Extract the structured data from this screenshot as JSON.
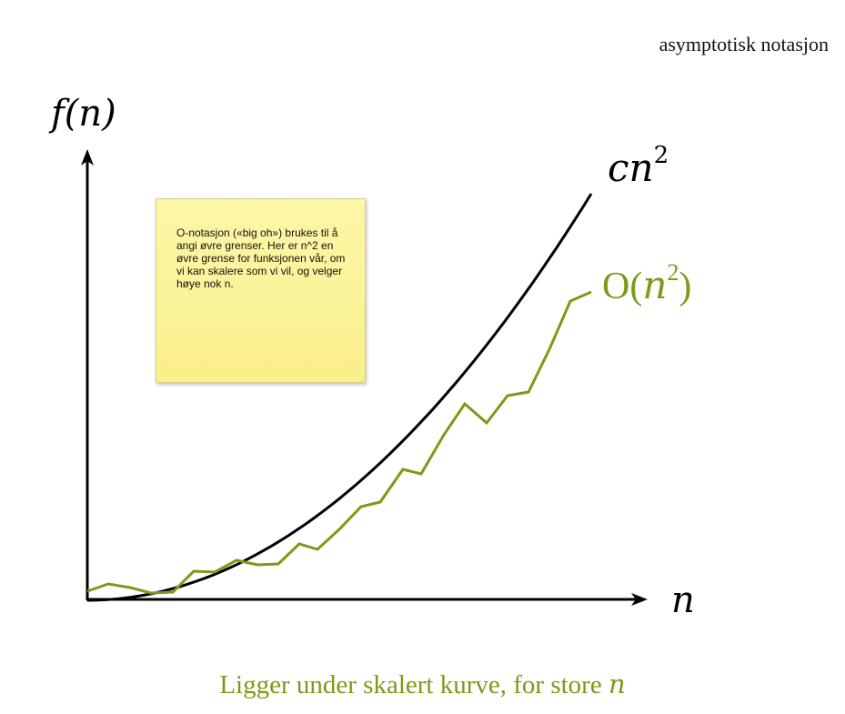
{
  "page_title": "asymptotisk notasjon",
  "axes": {
    "y_label": "f(n)",
    "x_label": "n"
  },
  "curves": {
    "upper_label_base": "cn",
    "upper_label_exp": "2",
    "lower_label_prefix": "O(",
    "lower_label_var": "n",
    "lower_label_exp": "2",
    "lower_label_suffix": ")"
  },
  "colors": {
    "upper": "#000000",
    "lower": "#7a9a18",
    "note_bg": "#fbf39a"
  },
  "note": {
    "text": "O-notasjon («big oh») brukes til å angi øvre grenser. Her er n^2 en øvre grense for funksjonen vår, om vi kan skalere som vi vil, og velger høye nok n."
  },
  "caption": {
    "text": "Ligger under skalert kurve, for store ",
    "var": "n"
  }
}
